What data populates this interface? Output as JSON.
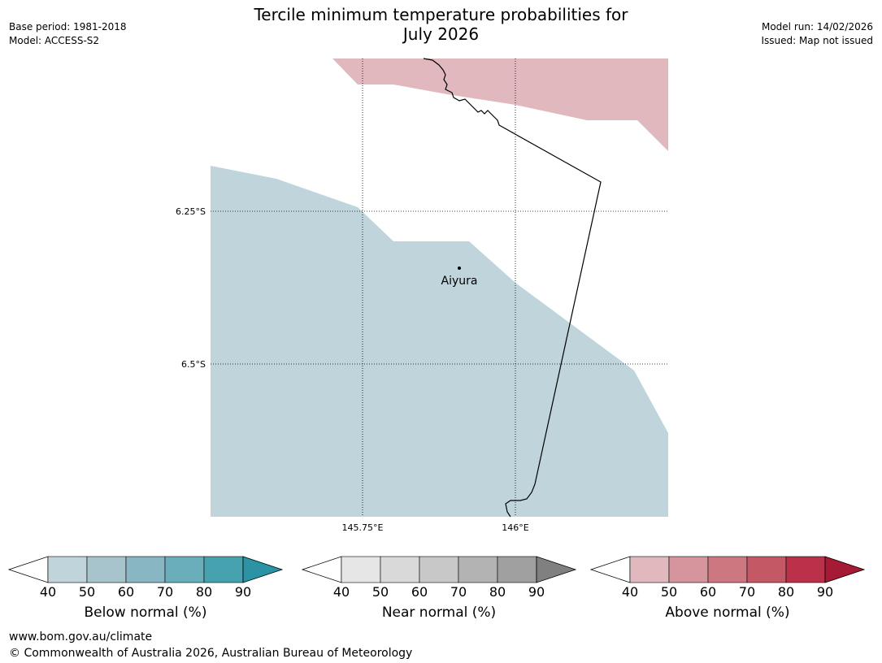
{
  "title": [
    "Tercile minimum temperature probabilities for",
    "July 2026"
  ],
  "meta_left": {
    "base_period": "Base period: 1981-2018",
    "model": "Model: ACCESS-S2"
  },
  "meta_right": {
    "model_run": "Model run: 14/02/2026",
    "issued": "Issued: Map not issued"
  },
  "map": {
    "lat_labels": [
      "6.25°S",
      "6.5°S"
    ],
    "lon_labels": [
      "145.75°E",
      "146°E"
    ],
    "place": "Aiyura",
    "fill_colors": {
      "below_40": "#bfd4db",
      "above_40": "#e0b8bd"
    }
  },
  "colorbars": [
    {
      "label": "Below normal (%)",
      "ticks": [
        "40",
        "50",
        "60",
        "70",
        "80",
        "90"
      ],
      "colors": [
        "#bfd4db",
        "#a7c4cc",
        "#88b7c3",
        "#6aaebb",
        "#47a2af"
      ],
      "arrow_color": "#2c93a5"
    },
    {
      "label": "Near normal (%)",
      "ticks": [
        "40",
        "50",
        "60",
        "70",
        "80",
        "90"
      ],
      "colors": [
        "#e6e6e6",
        "#d9d9d9",
        "#c8c8c8",
        "#b3b3b3",
        "#a0a0a0"
      ],
      "arrow_color": "#808080"
    },
    {
      "label": "Above normal (%)",
      "ticks": [
        "40",
        "50",
        "60",
        "70",
        "80",
        "90"
      ],
      "colors": [
        "#e0b8bd",
        "#d6959d",
        "#cd7780",
        "#c55865",
        "#ba3149"
      ],
      "arrow_color": "#a51a35"
    }
  ],
  "footer": {
    "url": "www.bom.gov.au/climate",
    "copyright": "© Commonwealth of Australia 2026, Australian Bureau of Meteorology"
  }
}
